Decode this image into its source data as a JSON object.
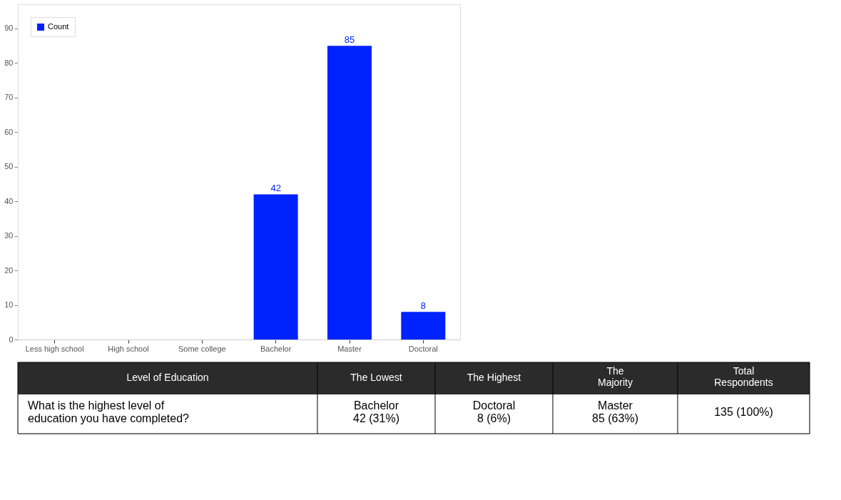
{
  "chart_data": {
    "type": "bar",
    "categories": [
      "Less high school",
      "High school",
      "Some college",
      "Bachelor",
      "Master",
      "Doctoral"
    ],
    "series": [
      {
        "name": "Count",
        "color": "#0022ff",
        "values": [
          0,
          0,
          0,
          42,
          85,
          8
        ]
      }
    ],
    "value_labels": [
      null,
      null,
      null,
      "42",
      "85",
      "8"
    ],
    "ylim": [
      0,
      97
    ],
    "yticks": [
      0,
      10,
      20,
      30,
      40,
      50,
      60,
      70,
      80,
      90
    ],
    "grid": false,
    "legend": "top left",
    "annotations": [
      "Level of Education",
      "The Lowest",
      "The Highest",
      "The\nMajority",
      "Total\nRespondents",
      "What is the highest level of\neducation you have completed?",
      "Bachelor\n42 (31%)",
      "Doctoral\n8 (6%)",
      "Master\n85 (63%)",
      "135 (100%)"
    ]
  }
}
